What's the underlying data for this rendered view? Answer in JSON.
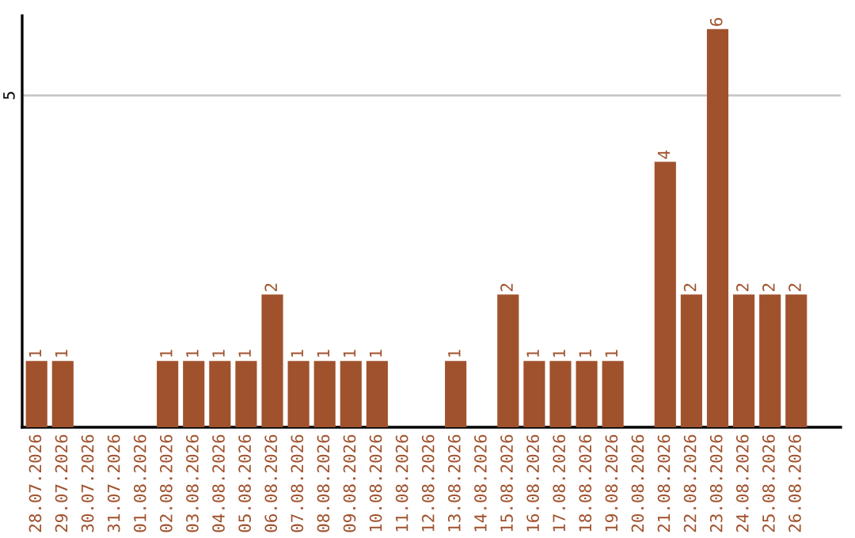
{
  "chart_data": {
    "type": "bar",
    "categories": [
      "28.07.2026",
      "29.07.2026",
      "30.07.2026",
      "31.07.2026",
      "01.08.2026",
      "02.08.2026",
      "03.08.2026",
      "04.08.2026",
      "05.08.2026",
      "06.08.2026",
      "07.08.2026",
      "08.08.2026",
      "09.08.2026",
      "10.08.2026",
      "11.08.2026",
      "12.08.2026",
      "13.08.2026",
      "14.08.2026",
      "15.08.2026",
      "16.08.2026",
      "17.08.2026",
      "18.08.2026",
      "19.08.2026",
      "20.08.2026",
      "21.08.2026",
      "22.08.2026",
      "23.08.2026",
      "24.08.2026",
      "25.08.2026",
      "26.08.2026"
    ],
    "values": [
      1,
      1,
      0,
      0,
      0,
      1,
      1,
      1,
      1,
      2,
      1,
      1,
      1,
      1,
      0,
      0,
      1,
      0,
      2,
      1,
      1,
      1,
      1,
      0,
      4,
      2,
      6,
      2,
      2,
      2
    ],
    "value_labels": [
      "1",
      "1",
      null,
      null,
      null,
      "1",
      "1",
      "1",
      "1",
      "2",
      "1",
      "1",
      "1",
      "1",
      null,
      null,
      "1",
      null,
      "2",
      "1",
      "1",
      "1",
      "1",
      null,
      "4",
      "2",
      "6",
      "2",
      "2",
      "2"
    ],
    "color": "#a0522d",
    "ylim": [
      0,
      6.2
    ],
    "yticks": [
      5
    ],
    "grid": "y",
    "legend": false
  }
}
